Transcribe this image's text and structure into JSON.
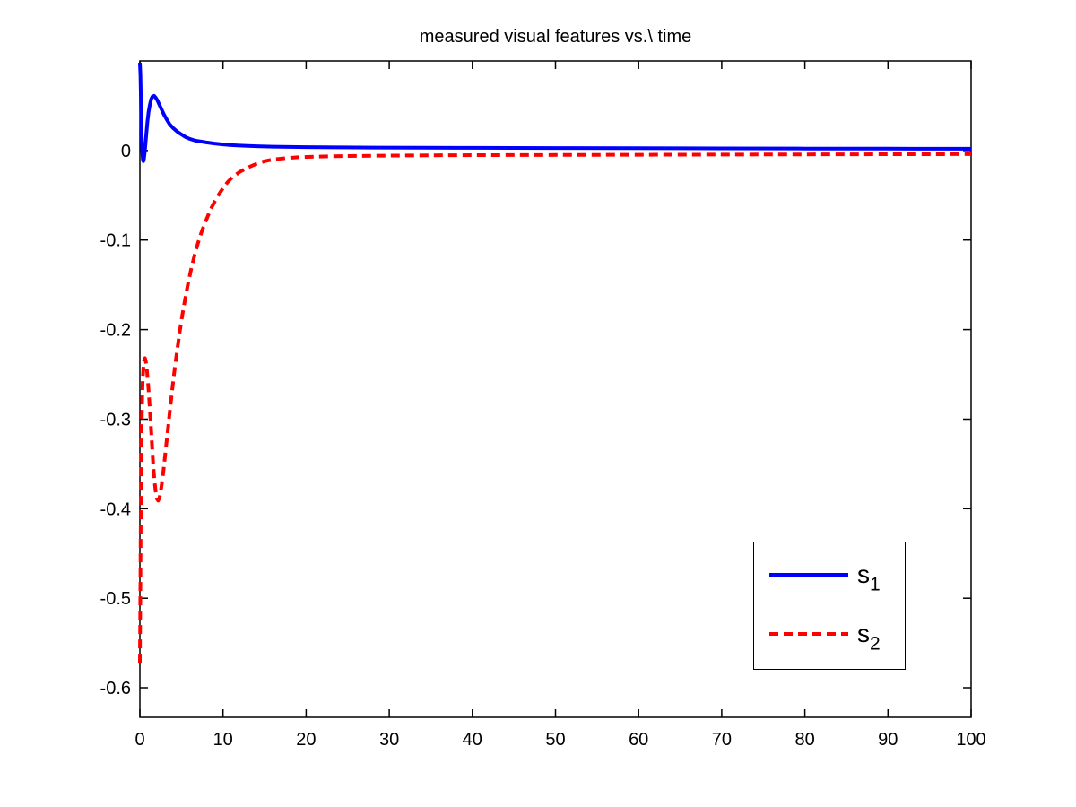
{
  "figure": {
    "background": "#ffffff",
    "axis_color": "#000000",
    "text_color": "#000000"
  },
  "chart_data": {
    "type": "line",
    "title": "measured visual features vs.\\ time",
    "xlabel": "",
    "ylabel": "",
    "xlim": [
      0,
      100
    ],
    "ylim": [
      -0.633,
      0.1
    ],
    "grid": false,
    "xticks": [
      0,
      10,
      20,
      30,
      40,
      50,
      60,
      70,
      80,
      90,
      100
    ],
    "xtick_labels": [
      "0",
      "10",
      "20",
      "30",
      "40",
      "50",
      "60",
      "70",
      "80",
      "90",
      "100"
    ],
    "yticks": [
      0,
      -0.1,
      -0.2,
      -0.3,
      -0.4,
      -0.5,
      -0.6
    ],
    "ytick_labels": [
      "0",
      "-0.1",
      "-0.2",
      "-0.3",
      "-0.4",
      "-0.5",
      "-0.6"
    ],
    "legend": {
      "position": "inside lower right",
      "border_color": "#000000",
      "entries": [
        {
          "base": "s",
          "sub": "1"
        },
        {
          "base": "s",
          "sub": "2"
        }
      ]
    },
    "series": [
      {
        "name": "s1",
        "color": "#0000ff",
        "style": "solid",
        "width": 4,
        "points": [
          [
            0,
            0.098
          ],
          [
            0.06,
            0.085
          ],
          [
            0.12,
            0.06
          ],
          [
            0.18,
            0.032
          ],
          [
            0.24,
            0.01
          ],
          [
            0.3,
            -0.004
          ],
          [
            0.36,
            -0.01
          ],
          [
            0.42,
            -0.012
          ],
          [
            0.5,
            -0.009
          ],
          [
            0.58,
            -0.002
          ],
          [
            0.68,
            0.008
          ],
          [
            0.8,
            0.021
          ],
          [
            0.92,
            0.033
          ],
          [
            1.05,
            0.043
          ],
          [
            1.2,
            0.051
          ],
          [
            1.35,
            0.057
          ],
          [
            1.5,
            0.06
          ],
          [
            1.7,
            0.061
          ],
          [
            1.9,
            0.059
          ],
          [
            2.1,
            0.056
          ],
          [
            2.35,
            0.051
          ],
          [
            2.6,
            0.046
          ],
          [
            2.9,
            0.04
          ],
          [
            3.2,
            0.035
          ],
          [
            3.6,
            0.029
          ],
          [
            4.0,
            0.025
          ],
          [
            4.5,
            0.021
          ],
          [
            5.0,
            0.018
          ],
          [
            5.5,
            0.015
          ],
          [
            6.0,
            0.013
          ],
          [
            6.5,
            0.0115
          ],
          [
            7.0,
            0.0105
          ],
          [
            8.0,
            0.009
          ],
          [
            9.0,
            0.0078
          ],
          [
            10,
            0.0068
          ],
          [
            11,
            0.006
          ],
          [
            12,
            0.0055
          ],
          [
            14,
            0.0048
          ],
          [
            16,
            0.0043
          ],
          [
            18,
            0.004
          ],
          [
            20,
            0.0038
          ],
          [
            24,
            0.0035
          ],
          [
            28,
            0.0033
          ],
          [
            34,
            0.0031
          ],
          [
            40,
            0.003
          ],
          [
            50,
            0.0028
          ],
          [
            60,
            0.0026
          ],
          [
            70,
            0.0024
          ],
          [
            80,
            0.0022
          ],
          [
            90,
            0.0021
          ],
          [
            100,
            0.002
          ]
        ]
      },
      {
        "name": "s2",
        "color": "#ff0000",
        "style": "dashed",
        "width": 4,
        "points": [
          [
            0,
            -0.572
          ],
          [
            0.03,
            -0.53
          ],
          [
            0.06,
            -0.48
          ],
          [
            0.09,
            -0.435
          ],
          [
            0.13,
            -0.385
          ],
          [
            0.17,
            -0.345
          ],
          [
            0.22,
            -0.307
          ],
          [
            0.28,
            -0.276
          ],
          [
            0.35,
            -0.255
          ],
          [
            0.43,
            -0.241
          ],
          [
            0.52,
            -0.234
          ],
          [
            0.62,
            -0.232
          ],
          [
            0.72,
            -0.236
          ],
          [
            0.85,
            -0.246
          ],
          [
            1.0,
            -0.262
          ],
          [
            1.15,
            -0.282
          ],
          [
            1.3,
            -0.305
          ],
          [
            1.45,
            -0.327
          ],
          [
            1.6,
            -0.35
          ],
          [
            1.75,
            -0.368
          ],
          [
            1.9,
            -0.381
          ],
          [
            2.05,
            -0.389
          ],
          [
            2.2,
            -0.391
          ],
          [
            2.35,
            -0.388
          ],
          [
            2.5,
            -0.381
          ],
          [
            2.7,
            -0.368
          ],
          [
            2.9,
            -0.352
          ],
          [
            3.1,
            -0.335
          ],
          [
            3.35,
            -0.313
          ],
          [
            3.6,
            -0.291
          ],
          [
            3.9,
            -0.266
          ],
          [
            4.2,
            -0.243
          ],
          [
            4.5,
            -0.222
          ],
          [
            4.8,
            -0.202
          ],
          [
            5.1,
            -0.184
          ],
          [
            5.4,
            -0.168
          ],
          [
            5.8,
            -0.148
          ],
          [
            6.2,
            -0.131
          ],
          [
            6.6,
            -0.116
          ],
          [
            7.0,
            -0.103
          ],
          [
            7.5,
            -0.089
          ],
          [
            8.0,
            -0.077
          ],
          [
            8.5,
            -0.066
          ],
          [
            9.0,
            -0.057
          ],
          [
            9.5,
            -0.049
          ],
          [
            10,
            -0.042
          ],
          [
            10.5,
            -0.036
          ],
          [
            11,
            -0.031
          ],
          [
            12,
            -0.024
          ],
          [
            13,
            -0.019
          ],
          [
            14,
            -0.015
          ],
          [
            15,
            -0.012
          ],
          [
            16,
            -0.01
          ],
          [
            17.5,
            -0.0085
          ],
          [
            19,
            -0.0075
          ],
          [
            21,
            -0.0068
          ],
          [
            24,
            -0.0062
          ],
          [
            28,
            -0.0058
          ],
          [
            32,
            -0.0055
          ],
          [
            38,
            -0.0052
          ],
          [
            45,
            -0.005
          ],
          [
            55,
            -0.0048
          ],
          [
            65,
            -0.0046
          ],
          [
            75,
            -0.0044
          ],
          [
            85,
            -0.0042
          ],
          [
            100,
            -0.004
          ]
        ]
      }
    ]
  }
}
